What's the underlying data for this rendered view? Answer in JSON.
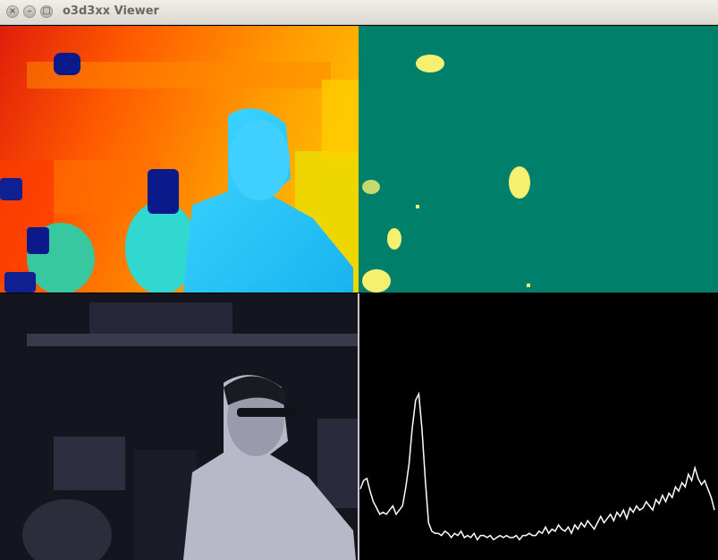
{
  "window": {
    "title": "o3d3xx Viewer",
    "controls": {
      "close": "×",
      "minimize": "–",
      "maximize": "□"
    }
  },
  "panels": {
    "depth": {
      "image": "depth-colormap-image"
    },
    "confidence": {
      "image": "confidence-mask-image"
    },
    "amplitude": {
      "image": "amplitude-grayscale-image"
    },
    "histogram": {
      "image": "amplitude-histogram-plot",
      "line_color": "#ffffff",
      "values": [
        0.26,
        0.3,
        0.31,
        0.25,
        0.2,
        0.17,
        0.14,
        0.15,
        0.14,
        0.16,
        0.18,
        0.14,
        0.16,
        0.18,
        0.27,
        0.38,
        0.55,
        0.68,
        0.71,
        0.54,
        0.3,
        0.1,
        0.06,
        0.05,
        0.05,
        0.04,
        0.06,
        0.05,
        0.03,
        0.05,
        0.04,
        0.06,
        0.03,
        0.04,
        0.03,
        0.05,
        0.02,
        0.04,
        0.04,
        0.03,
        0.04,
        0.02,
        0.03,
        0.04,
        0.03,
        0.04,
        0.03,
        0.03,
        0.04,
        0.02,
        0.04,
        0.04,
        0.05,
        0.04,
        0.04,
        0.06,
        0.05,
        0.08,
        0.05,
        0.07,
        0.06,
        0.09,
        0.07,
        0.06,
        0.08,
        0.05,
        0.09,
        0.07,
        0.1,
        0.08,
        0.11,
        0.09,
        0.07,
        0.1,
        0.13,
        0.1,
        0.12,
        0.14,
        0.11,
        0.15,
        0.13,
        0.16,
        0.12,
        0.17,
        0.15,
        0.18,
        0.16,
        0.17,
        0.2,
        0.18,
        0.16,
        0.21,
        0.19,
        0.23,
        0.2,
        0.24,
        0.22,
        0.27,
        0.25,
        0.29,
        0.27,
        0.33,
        0.3,
        0.36,
        0.31,
        0.28,
        0.3,
        0.26,
        0.22,
        0.16
      ]
    }
  }
}
